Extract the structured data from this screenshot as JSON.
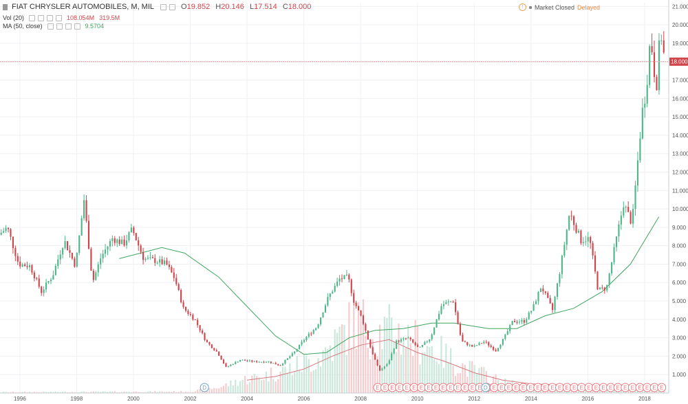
{
  "header": {
    "symbol": "FIAT CHRYSLER AUTOMOBILES, M, MIL",
    "open_label": "O",
    "open": "19.852",
    "high_label": "H",
    "high": "20.146",
    "low_label": "L",
    "low": "17.514",
    "close_label": "C",
    "close": "18.000"
  },
  "volume_legend": {
    "label": "Vol (20)",
    "value1": "108.054M",
    "value2": "319.5M"
  },
  "ma_legend": {
    "label": "MA (50, close)",
    "value": "9.5704"
  },
  "status": {
    "market": "Market Closed",
    "delayed": "Delayed"
  },
  "colors": {
    "up": "#4fb687",
    "down": "#d0454b",
    "ma": "#3fa45d",
    "price_line": "#e59ca0"
  },
  "chart_data": {
    "type": "candlestick",
    "x_range": [
      1995.3,
      2018.85
    ],
    "y_range": [
      0,
      21.2
    ],
    "y_ticks": [
      "1.000",
      "2.000",
      "3.000",
      "4.000",
      "5.000",
      "6.000",
      "7.000",
      "8.000",
      "9.000",
      "10.000",
      "11.000",
      "12.000",
      "13.000",
      "14.000",
      "15.000",
      "16.000",
      "17.000",
      "18.000",
      "19.000",
      "20.000",
      "21.000"
    ],
    "x_ticks": [
      "1996",
      "1998",
      "2000",
      "2002",
      "2004",
      "2006",
      "2008",
      "2010",
      "2012",
      "2014",
      "2016",
      "2018"
    ],
    "last_price": 18.0,
    "last_price_label": "18.000",
    "price_path": [
      [
        1995.3,
        8.6
      ],
      [
        1995.6,
        9.0
      ],
      [
        1996.0,
        7.0
      ],
      [
        1996.4,
        6.9
      ],
      [
        1996.8,
        5.5
      ],
      [
        1997.2,
        6.4
      ],
      [
        1997.6,
        8.3
      ],
      [
        1998.0,
        6.9
      ],
      [
        1998.3,
        10.5
      ],
      [
        1998.6,
        6.0
      ],
      [
        1998.9,
        7.4
      ],
      [
        1999.3,
        8.4
      ],
      [
        1999.7,
        8.1
      ],
      [
        2000.0,
        8.9
      ],
      [
        2000.4,
        7.3
      ],
      [
        2000.8,
        7.2
      ],
      [
        2001.2,
        7.0
      ],
      [
        2001.5,
        6.2
      ],
      [
        2001.8,
        4.6
      ],
      [
        2002.2,
        4.0
      ],
      [
        2002.6,
        2.8
      ],
      [
        2003.0,
        2.2
      ],
      [
        2003.3,
        1.4
      ],
      [
        2003.8,
        1.8
      ],
      [
        2004.3,
        1.7
      ],
      [
        2004.8,
        1.7
      ],
      [
        2005.2,
        1.5
      ],
      [
        2005.7,
        2.2
      ],
      [
        2006.1,
        3.0
      ],
      [
        2006.5,
        3.6
      ],
      [
        2006.9,
        5.2
      ],
      [
        2007.3,
        6.2
      ],
      [
        2007.6,
        6.3
      ],
      [
        2007.8,
        5.0
      ],
      [
        2008.1,
        4.0
      ],
      [
        2008.4,
        2.4
      ],
      [
        2008.7,
        1.2
      ],
      [
        2009.0,
        1.6
      ],
      [
        2009.3,
        2.8
      ],
      [
        2009.7,
        3.0
      ],
      [
        2010.1,
        2.4
      ],
      [
        2010.5,
        3.0
      ],
      [
        2010.9,
        4.8
      ],
      [
        2011.3,
        5.0
      ],
      [
        2011.6,
        2.8
      ],
      [
        2012.0,
        2.5
      ],
      [
        2012.4,
        2.8
      ],
      [
        2012.8,
        2.3
      ],
      [
        2013.1,
        3.0
      ],
      [
        2013.4,
        3.9
      ],
      [
        2013.8,
        3.9
      ],
      [
        2014.1,
        4.6
      ],
      [
        2014.4,
        5.8
      ],
      [
        2014.8,
        4.5
      ],
      [
        2015.1,
        7.0
      ],
      [
        2015.4,
        9.8
      ],
      [
        2015.8,
        8.3
      ],
      [
        2016.1,
        8.4
      ],
      [
        2016.4,
        5.6
      ],
      [
        2016.7,
        5.7
      ],
      [
        2017.0,
        8.0
      ],
      [
        2017.3,
        10.3
      ],
      [
        2017.6,
        9.2
      ],
      [
        2017.8,
        12.6
      ],
      [
        2017.95,
        15.2
      ],
      [
        2018.1,
        16.5
      ],
      [
        2018.25,
        19.4
      ],
      [
        2018.45,
        16.5
      ],
      [
        2018.6,
        19.8
      ],
      [
        2018.75,
        18.0
      ]
    ],
    "ma_path": [
      [
        1999.5,
        7.3
      ],
      [
        2001.0,
        7.9
      ],
      [
        2001.8,
        7.6
      ],
      [
        2003.0,
        6.3
      ],
      [
        2004.0,
        4.7
      ],
      [
        2005.0,
        3.1
      ],
      [
        2006.0,
        2.1
      ],
      [
        2006.8,
        2.2
      ],
      [
        2007.6,
        3.0
      ],
      [
        2008.5,
        3.4
      ],
      [
        2009.5,
        3.5
      ],
      [
        2010.5,
        3.8
      ],
      [
        2011.3,
        3.8
      ],
      [
        2012.5,
        3.5
      ],
      [
        2013.5,
        3.5
      ],
      [
        2014.5,
        4.2
      ],
      [
        2015.5,
        4.6
      ],
      [
        2016.5,
        5.5
      ],
      [
        2017.5,
        7.0
      ],
      [
        2018.5,
        9.57
      ]
    ],
    "volume_ma_path": [
      [
        2004.0,
        0.7
      ],
      [
        2005.0,
        0.9
      ],
      [
        2006.0,
        1.3
      ],
      [
        2007.0,
        2.0
      ],
      [
        2008.0,
        2.6
      ],
      [
        2009.0,
        2.9
      ],
      [
        2010.0,
        2.2
      ],
      [
        2011.0,
        1.7
      ],
      [
        2012.0,
        1.1
      ],
      [
        2013.0,
        0.7
      ],
      [
        2014.0,
        0.5
      ],
      [
        2016.0,
        0.4
      ],
      [
        2018.0,
        0.3
      ]
    ],
    "volume_profile": [
      [
        1995.3,
        0.05
      ],
      [
        2002.0,
        0.08
      ],
      [
        2003.0,
        0.3
      ],
      [
        2003.8,
        0.7
      ],
      [
        2004.5,
        0.9
      ],
      [
        2005.5,
        1.3
      ],
      [
        2006.5,
        1.9
      ],
      [
        2007.2,
        2.9
      ],
      [
        2007.6,
        3.6
      ],
      [
        2008.0,
        3.9
      ],
      [
        2008.4,
        3.2
      ],
      [
        2009.0,
        3.4
      ],
      [
        2009.6,
        3.0
      ],
      [
        2010.2,
        2.7
      ],
      [
        2010.8,
        2.2
      ],
      [
        2011.5,
        1.5
      ],
      [
        2012.2,
        1.1
      ],
      [
        2013.0,
        0.6
      ],
      [
        2014.0,
        0.3
      ],
      [
        2015.0,
        0.25
      ],
      [
        2016.0,
        0.2
      ],
      [
        2017.0,
        0.15
      ],
      [
        2018.75,
        0.15
      ]
    ],
    "event_markers": {
      "dividend_label": "D",
      "earnings_label": "E",
      "dividends": [
        2002.5,
        2012.4
      ],
      "earnings_start": 2008.6,
      "earnings_end": 2018.6,
      "earnings_count": 40
    }
  }
}
